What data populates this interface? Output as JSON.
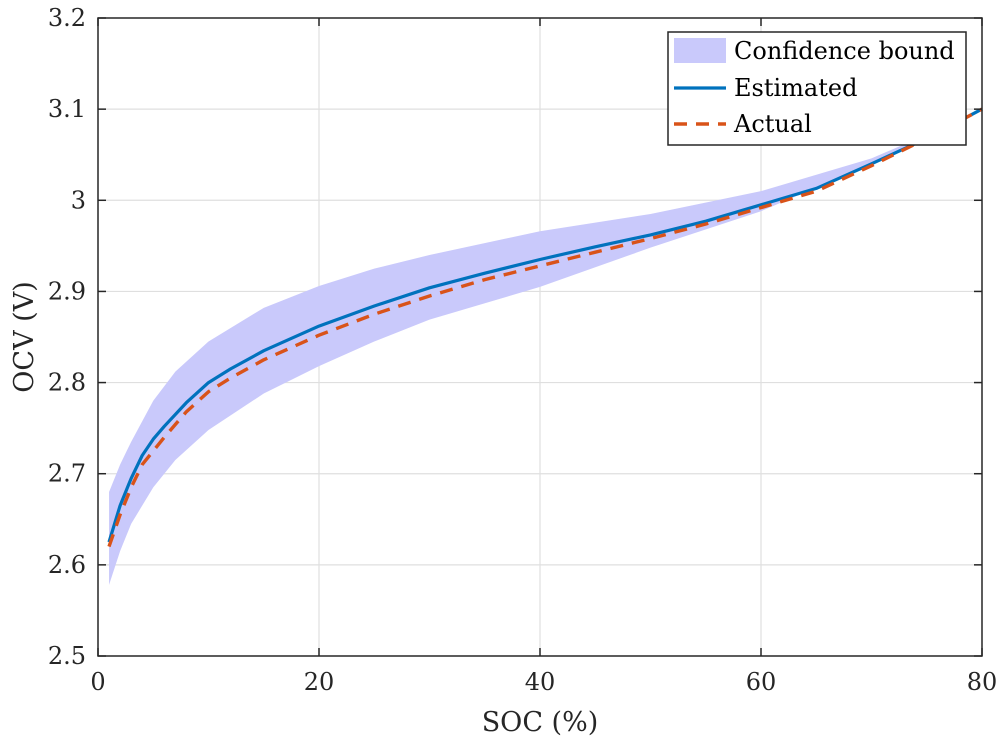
{
  "chart_data": {
    "type": "line",
    "title": "",
    "xlabel": "SOC (%)",
    "ylabel": "OCV (V)",
    "xlim": [
      0,
      80
    ],
    "ylim": [
      2.5,
      3.2
    ],
    "xticks": [
      0,
      20,
      40,
      60,
      80
    ],
    "xtick_labels": [
      "0",
      "20",
      "40",
      "60",
      "80"
    ],
    "yticks": [
      2.5,
      2.6,
      2.7,
      2.8,
      2.9,
      3.0,
      3.1,
      3.2
    ],
    "ytick_labels": [
      "2.5",
      "2.6",
      "2.7",
      "2.8",
      "2.9",
      "3",
      "3.1",
      "3.2"
    ],
    "grid": true,
    "legend_location": "top-right",
    "legend": [
      "Confidence bound",
      "Estimated",
      "Actual"
    ],
    "colors": {
      "confidence_fill": "#c9c9fb",
      "estimated": "#0072bd",
      "actual": "#d95319",
      "grid": "#dfdfdf",
      "axes": "#262626"
    },
    "series": [
      {
        "name": "Confidence bound",
        "kind": "band",
        "x": [
          1,
          2,
          3,
          5,
          7,
          10,
          15,
          20,
          25,
          30,
          40,
          50,
          60,
          70,
          75,
          80
        ],
        "lower": [
          2.578,
          2.615,
          2.645,
          2.685,
          2.715,
          2.748,
          2.788,
          2.818,
          2.845,
          2.869,
          2.905,
          2.948,
          2.988,
          3.04,
          3.07,
          3.1
        ],
        "upper": [
          2.68,
          2.71,
          2.735,
          2.78,
          2.812,
          2.845,
          2.882,
          2.906,
          2.925,
          2.94,
          2.966,
          2.985,
          3.01,
          3.046,
          3.072,
          3.1
        ]
      },
      {
        "name": "Estimated",
        "kind": "solid",
        "x": [
          1,
          2,
          3,
          4,
          5,
          6,
          8,
          10,
          12,
          15,
          20,
          25,
          30,
          35,
          40,
          45,
          50,
          55,
          60,
          65,
          70,
          75,
          80
        ],
        "values": [
          2.625,
          2.665,
          2.695,
          2.72,
          2.738,
          2.752,
          2.778,
          2.8,
          2.815,
          2.835,
          2.862,
          2.884,
          2.904,
          2.92,
          2.935,
          2.949,
          2.962,
          2.977,
          2.995,
          3.013,
          3.04,
          3.068,
          3.1
        ]
      },
      {
        "name": "Actual",
        "kind": "dashed",
        "x": [
          1,
          2,
          3,
          4,
          5,
          6,
          8,
          10,
          12,
          15,
          20,
          25,
          30,
          35,
          40,
          45,
          50,
          55,
          60,
          65,
          70,
          75,
          80
        ],
        "values": [
          2.62,
          2.655,
          2.685,
          2.71,
          2.725,
          2.74,
          2.768,
          2.79,
          2.805,
          2.825,
          2.852,
          2.875,
          2.895,
          2.913,
          2.928,
          2.943,
          2.958,
          2.974,
          2.992,
          3.01,
          3.038,
          3.068,
          3.1
        ]
      }
    ]
  }
}
